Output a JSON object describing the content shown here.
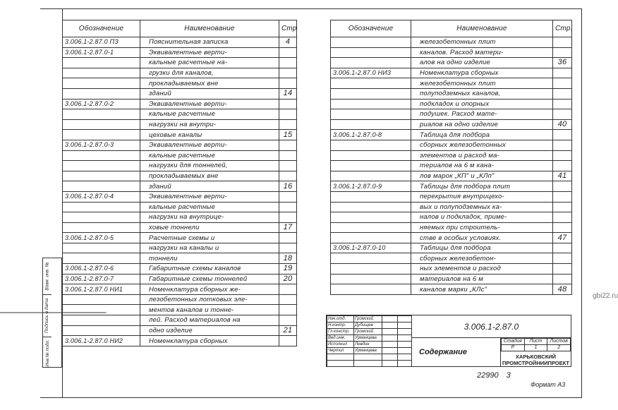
{
  "headers": {
    "designation": "Обозначение",
    "name": "Наименование",
    "page": "Стр."
  },
  "left_rows": [
    {
      "code": "3.006.1-2.87.0 ПЗ",
      "name": "Пояснительная записка",
      "page": "4"
    },
    {
      "code": "3.006.1-2.87.0-1",
      "name": "Эквивалентные верти-",
      "page": ""
    },
    {
      "code": "",
      "name": "кальные расчетные на-",
      "page": ""
    },
    {
      "code": "",
      "name": "грузки для каналов,",
      "page": ""
    },
    {
      "code": "",
      "name": "прокладываемых вне",
      "page": ""
    },
    {
      "code": "",
      "name": "зданий",
      "page": "14"
    },
    {
      "code": "3.006.1-2.87.0-2",
      "name": "Эквивалентные верти-",
      "page": ""
    },
    {
      "code": "",
      "name": "кальные расчетные",
      "page": ""
    },
    {
      "code": "",
      "name": "нагрузки на внутри-",
      "page": ""
    },
    {
      "code": "",
      "name": "цеховые каналы",
      "page": "15"
    },
    {
      "code": "3.006.1-2.87.0-3",
      "name": "Эквивалентные верти-",
      "page": ""
    },
    {
      "code": "",
      "name": "кальные расчетные",
      "page": ""
    },
    {
      "code": "",
      "name": "нагрузки для тоннелей,",
      "page": ""
    },
    {
      "code": "",
      "name": "прокладываемых вне",
      "page": ""
    },
    {
      "code": "",
      "name": "зданий",
      "page": "16"
    },
    {
      "code": "3.006.1-2.87.0-4",
      "name": "Эквивалентные верти-",
      "page": ""
    },
    {
      "code": "",
      "name": "кальные расчетные",
      "page": ""
    },
    {
      "code": "",
      "name": "нагрузки на внутрице-",
      "page": ""
    },
    {
      "code": "",
      "name": "ховые тоннели",
      "page": "17"
    },
    {
      "code": "3.006.1-2.87.0-5",
      "name": "Расчетные схемы и",
      "page": ""
    },
    {
      "code": "",
      "name": "нагрузки на каналы и",
      "page": ""
    },
    {
      "code": "",
      "name": "тоннели",
      "page": "18"
    },
    {
      "code": "3.006.1-2.87.0-6",
      "name": "Габаритные схемы каналов",
      "page": "19"
    },
    {
      "code": "3.006.1-2.87.0-7",
      "name": "Габаритные схемы тоннелей",
      "page": "20"
    },
    {
      "code": "3.006.1-2.87.0 НИ1",
      "name": "Номенклатура сборных же-",
      "page": ""
    },
    {
      "code": "",
      "name": "лезобетонных лотковых эле-",
      "page": ""
    },
    {
      "code": "",
      "name": "ментов каналов и тонне-",
      "page": ""
    },
    {
      "code": "",
      "name": "лей. Расход материалов на",
      "page": ""
    },
    {
      "code": "",
      "name": "одно изделие",
      "page": "21"
    },
    {
      "code": "3.006.1-2.87.0 НИ2",
      "name": "Номенклатура сборных",
      "page": ""
    }
  ],
  "right_rows": [
    {
      "code": "",
      "name": "железобетонных плит",
      "page": ""
    },
    {
      "code": "",
      "name": "каналов. Расход матери-",
      "page": ""
    },
    {
      "code": "",
      "name": "алов на одно изделие",
      "page": "36"
    },
    {
      "code": "3.006.1-2.87.0 НИ3",
      "name": "Номенклатура сборных",
      "page": ""
    },
    {
      "code": "",
      "name": "железобетонных плит",
      "page": ""
    },
    {
      "code": "",
      "name": "полуподземных каналов,",
      "page": ""
    },
    {
      "code": "",
      "name": "подкладок и опорных",
      "page": ""
    },
    {
      "code": "",
      "name": "подушек. Расход мате-",
      "page": ""
    },
    {
      "code": "",
      "name": "риалов на одно изделие",
      "page": "40"
    },
    {
      "code": "3.006.1-2.87.0-8",
      "name": "Таблица для подбора",
      "page": ""
    },
    {
      "code": "",
      "name": "сборных железобетонных",
      "page": ""
    },
    {
      "code": "",
      "name": "элементов и расход ма-",
      "page": ""
    },
    {
      "code": "",
      "name": "териалов на 6 м кана-",
      "page": ""
    },
    {
      "code": "",
      "name": "лов марок „КП\" и „КЛп\"",
      "page": "41"
    },
    {
      "code": "3.006.1-2.87.0-9",
      "name": "Таблицы для подбора плит",
      "page": ""
    },
    {
      "code": "",
      "name": "перекрытия внутрицехо-",
      "page": ""
    },
    {
      "code": "",
      "name": "вых и полуподземных ка-",
      "page": ""
    },
    {
      "code": "",
      "name": "налов и подкладок, приме-",
      "page": ""
    },
    {
      "code": "",
      "name": "няемых при строитель-",
      "page": ""
    },
    {
      "code": "",
      "name": "стве в особых условиях.",
      "page": "47"
    },
    {
      "code": "3.006.1-2.87.0-10",
      "name": "Таблицы для подбора",
      "page": ""
    },
    {
      "code": "",
      "name": "сборных железобетон-",
      "page": ""
    },
    {
      "code": "",
      "name": "ных элементов и расход",
      "page": ""
    },
    {
      "code": "",
      "name": "материалов на 6 м",
      "page": ""
    },
    {
      "code": "",
      "name": "каналов марки „КЛс\"",
      "page": "48"
    }
  ],
  "title_block": {
    "signatories": [
      {
        "role": "Нач.отд.",
        "name": "Громский"
      },
      {
        "role": "Н.контр.",
        "name": "Дубищев"
      },
      {
        "role": "Гл.констр.",
        "name": "Громский"
      },
      {
        "role": "Вед.инж.",
        "name": "Урманцева"
      },
      {
        "role": "Исполнил",
        "name": "Левдин"
      },
      {
        "role": "Чертил",
        "name": "Урманцева"
      }
    ],
    "document_code": "3.006.1-2.87.0",
    "sheet_title": "Содержание",
    "stage_label": "Стадия",
    "sheet_label": "Лист",
    "sheets_label": "Листов",
    "stage": "Р",
    "sheet": "1",
    "sheets": "2",
    "organization_line1": "ХАРЬКОВСКИЙ",
    "organization_line2": "ПРОМСТРОЙНИИПРОЕКТ"
  },
  "side_stamp": [
    "Инв.№ подл.",
    "Подпись и дата",
    "Взам. инв. №"
  ],
  "footer": {
    "number": "22990 3",
    "format": "Формат А3"
  },
  "watermark": "gbi22.ru"
}
